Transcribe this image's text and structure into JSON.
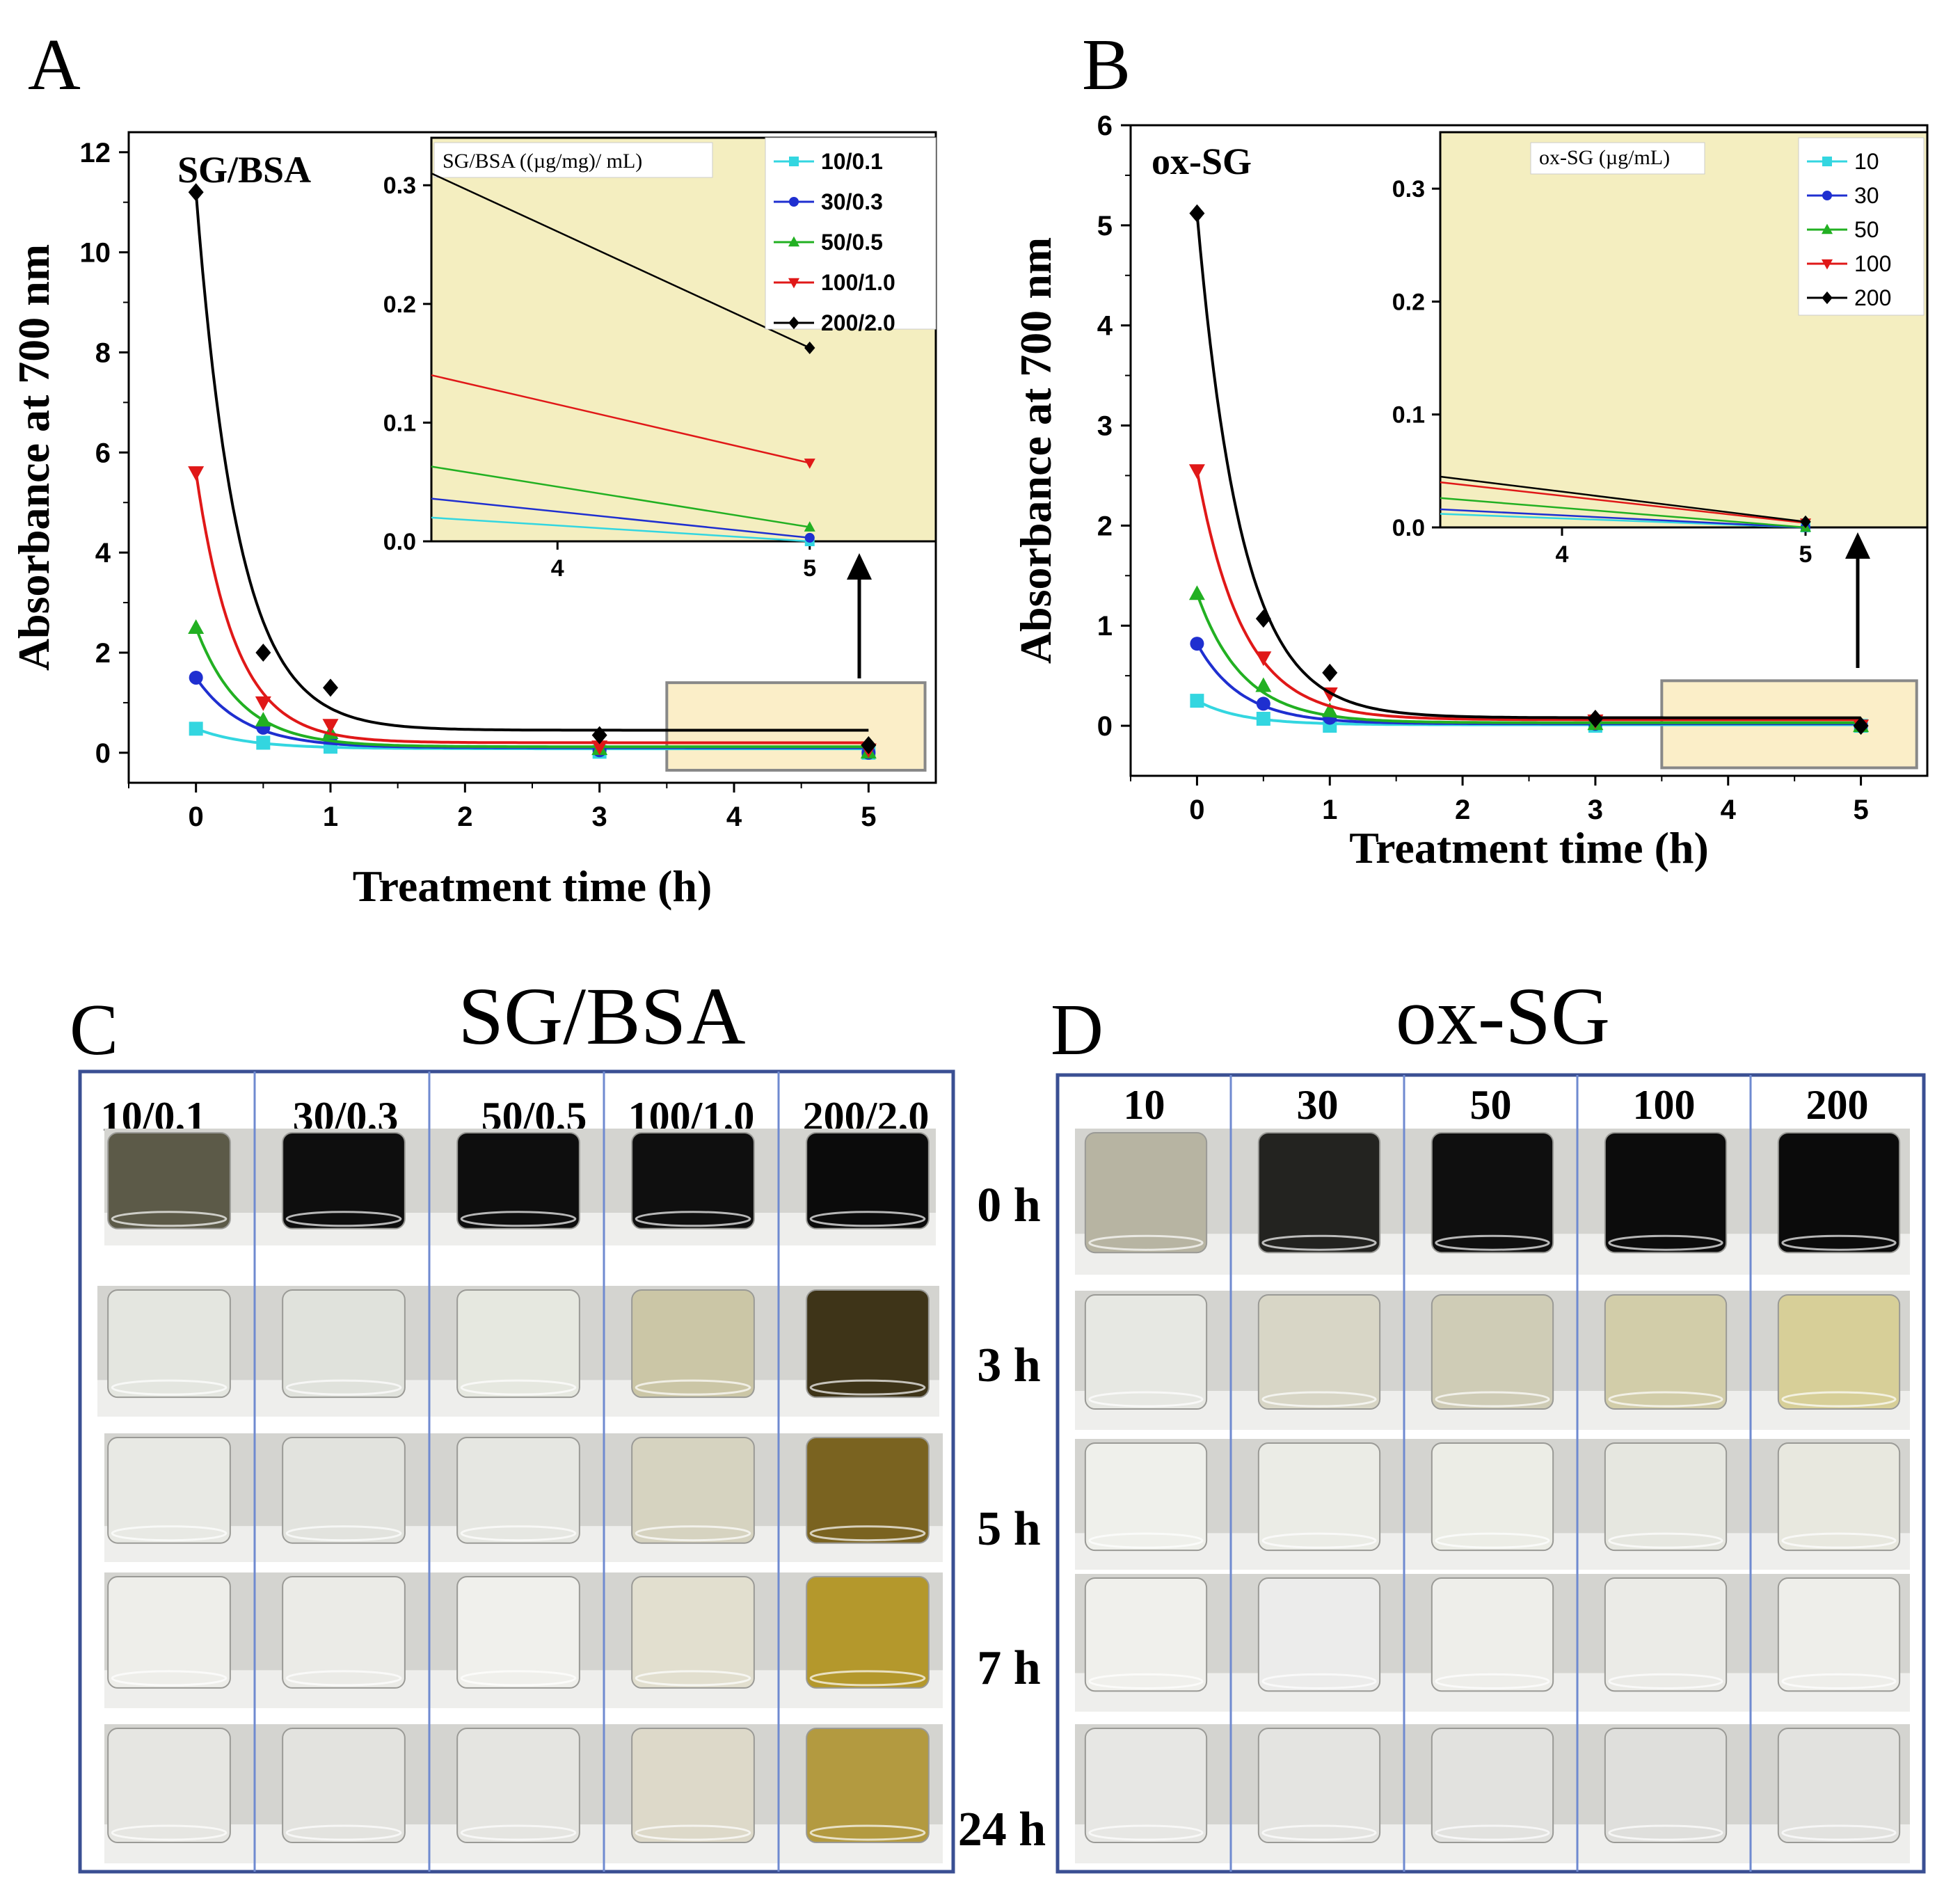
{
  "panels": {
    "a": "A",
    "b": "B",
    "c": "C",
    "d": "D"
  },
  "colors": {
    "cyan": "#33d6e0",
    "blue": "#1f2fd0",
    "green": "#22b022",
    "red": "#e01818",
    "black": "#000000",
    "inset_bg": "#f4eec0",
    "zoom_box": "#fbeec8",
    "frame": "#3a4f93",
    "gridline": "#6f8ad0"
  },
  "chart_data": [
    {
      "id": "A",
      "type": "scatter",
      "label": "SG/BSA",
      "xlabel": "Treatment time (h)",
      "ylabel": "Absorbance  at 700 nm",
      "xlim": [
        -0.5,
        5.5
      ],
      "ylim": [
        -0.6,
        12.4
      ],
      "xticks": [
        "0",
        "1",
        "2",
        "3",
        "4",
        "5"
      ],
      "yticks": [
        "0",
        "2",
        "4",
        "6",
        "8",
        "10",
        "12"
      ],
      "x": [
        0,
        0.5,
        1,
        3,
        5
      ],
      "series": [
        {
          "name": "10/0.1",
          "color": "#33d6e0",
          "marker": "square",
          "values": [
            0.48,
            0.2,
            0.12,
            0.02,
            0.0
          ],
          "fit": {
            "y0": 0.08,
            "A": 0.4,
            "k": 2.6
          }
        },
        {
          "name": "30/0.3",
          "color": "#1f2fd0",
          "marker": "circle",
          "values": [
            1.5,
            0.5,
            0.3,
            0.05,
            0.0
          ],
          "fit": {
            "y0": 0.1,
            "A": 1.4,
            "k": 2.8
          }
        },
        {
          "name": "50/0.5",
          "color": "#22b022",
          "marker": "triangle-up",
          "values": [
            2.5,
            0.65,
            0.4,
            0.08,
            0.01
          ],
          "fit": {
            "y0": 0.12,
            "A": 2.38,
            "k": 3.0
          }
        },
        {
          "name": "100/1.0",
          "color": "#e01818",
          "marker": "triangle-down",
          "values": [
            5.6,
            1.0,
            0.55,
            0.12,
            0.06
          ],
          "fit": {
            "y0": 0.2,
            "A": 5.4,
            "k": 3.4
          }
        },
        {
          "name": "200/2.0",
          "color": "#000000",
          "marker": "diamond",
          "values": [
            11.2,
            2.0,
            1.3,
            0.35,
            0.15
          ],
          "fit": {
            "y0": 0.45,
            "A": 10.75,
            "k": 3.2
          }
        }
      ],
      "inset": {
        "title": "SG/BSA ((µg/mg)/ mL)",
        "xlim": [
          3.5,
          5.5
        ],
        "ylim": [
          0.0,
          0.34
        ],
        "xticks": [
          "4",
          "5"
        ],
        "yticks": [
          "0.0",
          "0.1",
          "0.2",
          "0.3"
        ],
        "x": [
          5
        ],
        "series": [
          {
            "name": "10/0.1",
            "start": 0.02,
            "end": 0.0
          },
          {
            "name": "30/0.3",
            "start": 0.036,
            "end": 0.003
          },
          {
            "name": "50/0.5",
            "start": 0.063,
            "end": 0.012
          },
          {
            "name": "100/1.0",
            "start": 0.14,
            "end": 0.066
          },
          {
            "name": "200/2.0",
            "start": 0.31,
            "end": 0.163
          }
        ]
      }
    },
    {
      "id": "B",
      "type": "scatter",
      "label": "ox-SG",
      "xlabel": "Treatment time (h)",
      "ylabel": "Absorbance  at 700 nm",
      "xlim": [
        -0.5,
        5.5
      ],
      "ylim": [
        -0.5,
        6.0
      ],
      "xticks": [
        "0",
        "1",
        "2",
        "3",
        "4",
        "5"
      ],
      "yticks": [
        "0",
        "1",
        "2",
        "3",
        "4",
        "5",
        "6"
      ],
      "x": [
        0,
        0.5,
        1,
        3,
        5
      ],
      "series": [
        {
          "name": "10",
          "color": "#33d6e0",
          "marker": "square",
          "values": [
            0.25,
            0.07,
            0.0,
            0.0,
            0.0
          ],
          "fit": {
            "y0": 0.01,
            "A": 0.24,
            "k": 3.0
          }
        },
        {
          "name": "30",
          "color": "#1f2fd0",
          "marker": "circle",
          "values": [
            0.82,
            0.22,
            0.08,
            0.02,
            0.0
          ],
          "fit": {
            "y0": 0.02,
            "A": 0.8,
            "k": 3.0
          }
        },
        {
          "name": "50",
          "color": "#22b022",
          "marker": "triangle-up",
          "values": [
            1.32,
            0.4,
            0.15,
            0.02,
            0.0
          ],
          "fit": {
            "y0": 0.03,
            "A": 1.29,
            "k": 2.9
          }
        },
        {
          "name": "100",
          "color": "#e01818",
          "marker": "triangle-down",
          "values": [
            2.55,
            0.68,
            0.32,
            0.05,
            0.0
          ],
          "fit": {
            "y0": 0.06,
            "A": 2.49,
            "k": 2.9
          }
        },
        {
          "name": "200",
          "color": "#000000",
          "marker": "diamond",
          "values": [
            5.12,
            1.07,
            0.53,
            0.07,
            0.0
          ],
          "fit": {
            "y0": 0.08,
            "A": 5.04,
            "k": 3.0
          }
        }
      ],
      "inset": {
        "title": "ox-SG (µg/mL)",
        "xlim": [
          3.5,
          5.5
        ],
        "ylim": [
          0.0,
          0.35
        ],
        "xticks": [
          "4",
          "5"
        ],
        "yticks": [
          "0.0",
          "0.1",
          "0.2",
          "0.3"
        ],
        "x": [
          5
        ],
        "series": [
          {
            "name": "10",
            "start": 0.012,
            "end": 0.0
          },
          {
            "name": "30",
            "start": 0.016,
            "end": 0.0
          },
          {
            "name": "50",
            "start": 0.026,
            "end": 0.0
          },
          {
            "name": "100",
            "start": 0.04,
            "end": 0.004
          },
          {
            "name": "200",
            "start": 0.045,
            "end": 0.005
          }
        ]
      }
    }
  ],
  "photo_panels": [
    {
      "id": "C",
      "title": "SG/BSA",
      "columns": [
        "10/0.1",
        "30/0.3",
        "50/0.5",
        "100/1.0",
        "200/2.0"
      ],
      "times": [
        "0 h",
        "3 h",
        "5 h",
        "7 h",
        "24 h"
      ]
    },
    {
      "id": "D",
      "title": "ox-SG",
      "columns": [
        "10",
        "30",
        "50",
        "100",
        "200"
      ]
    }
  ]
}
